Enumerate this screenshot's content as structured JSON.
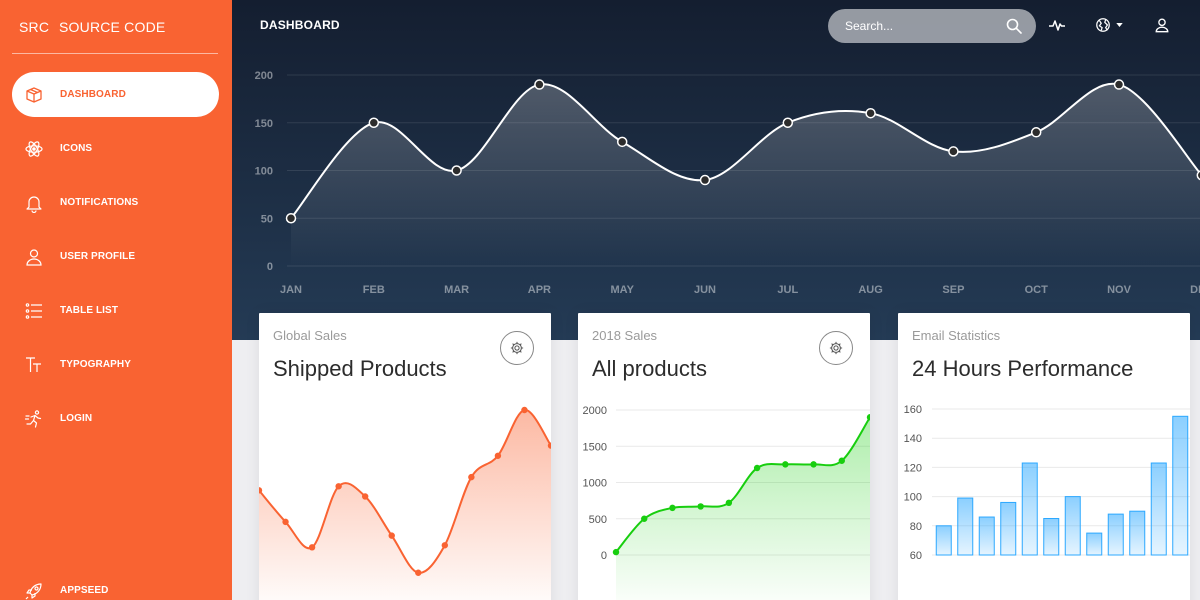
{
  "brand": {
    "mini": "SRC",
    "name": "SOURCE CODE"
  },
  "sidebar": {
    "items": [
      {
        "label": "DASHBOARD",
        "icon": "box-icon",
        "active": true
      },
      {
        "label": "ICONS",
        "icon": "atom-icon"
      },
      {
        "label": "NOTIFICATIONS",
        "icon": "bell-icon"
      },
      {
        "label": "USER PROFILE",
        "icon": "user-icon"
      },
      {
        "label": "TABLE LIST",
        "icon": "list-icon"
      },
      {
        "label": "TYPOGRAPHY",
        "icon": "typography-icon"
      },
      {
        "label": "LOGIN",
        "icon": "runner-icon"
      }
    ],
    "bottom": {
      "label": "APPSEED",
      "icon": "rocket-icon"
    }
  },
  "topbar": {
    "title": "DASHBOARD",
    "search_placeholder": "Search..."
  },
  "cards": [
    {
      "category": "Global Sales",
      "title": "Shipped Products"
    },
    {
      "category": "2018 Sales",
      "title": "All products"
    },
    {
      "category": "Email Statistics",
      "title": "24 Hours Performance"
    }
  ],
  "chart_data": [
    {
      "type": "line",
      "categories": [
        "JAN",
        "FEB",
        "MAR",
        "APR",
        "MAY",
        "JUN",
        "JUL",
        "AUG",
        "SEP",
        "OCT",
        "NOV",
        "DEC"
      ],
      "values": [
        50,
        150,
        100,
        190,
        130,
        90,
        150,
        160,
        120,
        140,
        190,
        95
      ],
      "ylim": [
        0,
        200
      ],
      "yticks": [
        0,
        50,
        100,
        150,
        200
      ],
      "grid": true,
      "color": "#ffffff"
    },
    {
      "type": "line",
      "values": [
        542,
        480,
        430,
        550,
        530,
        453,
        380,
        434,
        568,
        610,
        700,
        630
      ],
      "color": "#f96332",
      "grid": false
    },
    {
      "type": "line",
      "values": [
        40,
        500,
        650,
        670,
        720,
        1200,
        1250,
        1250,
        1300,
        1900
      ],
      "ylim": [
        0,
        2000
      ],
      "yticks": [
        0,
        500,
        1000,
        1500,
        2000
      ],
      "color": "#18ce0f",
      "grid": true
    },
    {
      "type": "bar",
      "values": [
        80,
        99,
        86,
        96,
        123,
        85,
        100,
        75,
        88,
        90,
        123,
        155
      ],
      "ylim": [
        60,
        160
      ],
      "yticks": [
        60,
        80,
        100,
        120,
        140,
        160
      ],
      "color": "#2ca8ff",
      "grid": true
    }
  ]
}
